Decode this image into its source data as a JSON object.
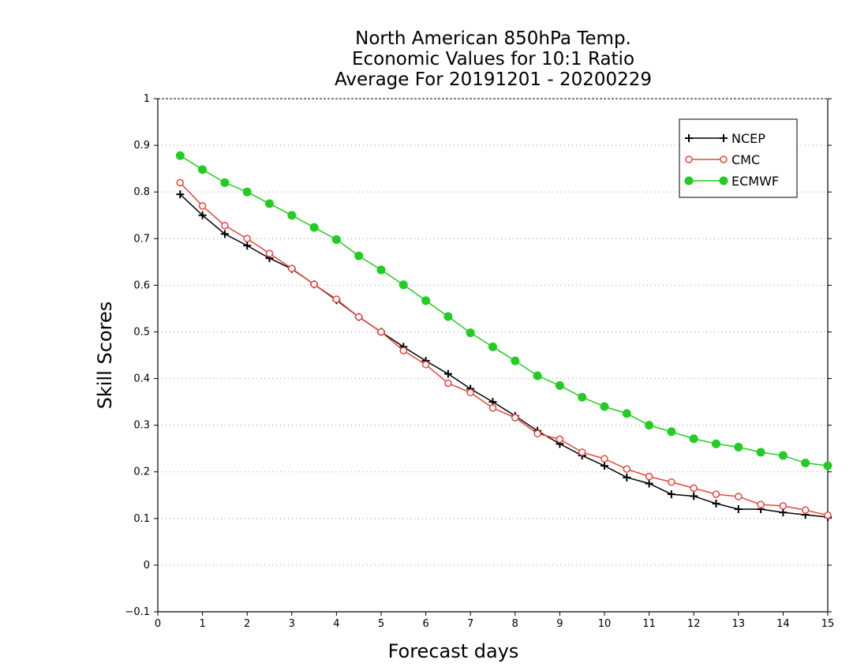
{
  "chart_data": {
    "type": "line",
    "title_lines": [
      "North American 850hPa Temp.",
      "Economic Values for 10:1 Ratio",
      "Average For 20191201 - 20200229"
    ],
    "xlabel": "Forecast days",
    "ylabel": "Skill Scores",
    "xlim": [
      0,
      15
    ],
    "ylim": [
      -0.1,
      1
    ],
    "x_ticks": [
      0,
      1,
      2,
      3,
      4,
      5,
      6,
      7,
      8,
      9,
      10,
      11,
      12,
      13,
      14,
      15
    ],
    "y_ticks": [
      -0.1,
      0,
      0.1,
      0.2,
      0.3,
      0.4,
      0.5,
      0.6,
      0.7,
      0.8,
      0.9,
      1
    ],
    "grid": "horizontal dotted",
    "legend_position": "top-right",
    "x": [
      0.5,
      1,
      1.5,
      2,
      2.5,
      3,
      3.5,
      4,
      4.5,
      5,
      5.5,
      6,
      6.5,
      7,
      7.5,
      8,
      8.5,
      9,
      9.5,
      10,
      10.5,
      11,
      11.5,
      12,
      12.5,
      13,
      13.5,
      14,
      14.5,
      15
    ],
    "series": [
      {
        "name": "NCEP",
        "color": "#000000",
        "marker": "plus",
        "values": [
          0.795,
          0.75,
          0.71,
          0.685,
          0.658,
          0.635,
          0.602,
          0.568,
          0.532,
          0.5,
          0.468,
          0.438,
          0.41,
          0.378,
          0.35,
          0.32,
          0.288,
          0.26,
          0.235,
          0.213,
          0.188,
          0.175,
          0.152,
          0.148,
          0.132,
          0.12,
          0.12,
          0.113,
          0.108,
          0.103
        ]
      },
      {
        "name": "CMC",
        "color": "#e8453c",
        "marker": "open-circle",
        "values": [
          0.82,
          0.77,
          0.728,
          0.7,
          0.668,
          0.636,
          0.602,
          0.57,
          0.532,
          0.5,
          0.46,
          0.43,
          0.39,
          0.37,
          0.337,
          0.316,
          0.282,
          0.27,
          0.242,
          0.228,
          0.206,
          0.19,
          0.178,
          0.165,
          0.152,
          0.147,
          0.13,
          0.127,
          0.118,
          0.107
        ]
      },
      {
        "name": "ECMWF",
        "color": "#22cc22",
        "marker": "filled-circle",
        "values": [
          0.878,
          0.848,
          0.82,
          0.8,
          0.775,
          0.75,
          0.724,
          0.698,
          0.663,
          0.633,
          0.601,
          0.567,
          0.533,
          0.498,
          0.468,
          0.438,
          0.406,
          0.385,
          0.36,
          0.34,
          0.325,
          0.3,
          0.286,
          0.271,
          0.26,
          0.253,
          0.242,
          0.235,
          0.219,
          0.213
        ]
      }
    ]
  }
}
